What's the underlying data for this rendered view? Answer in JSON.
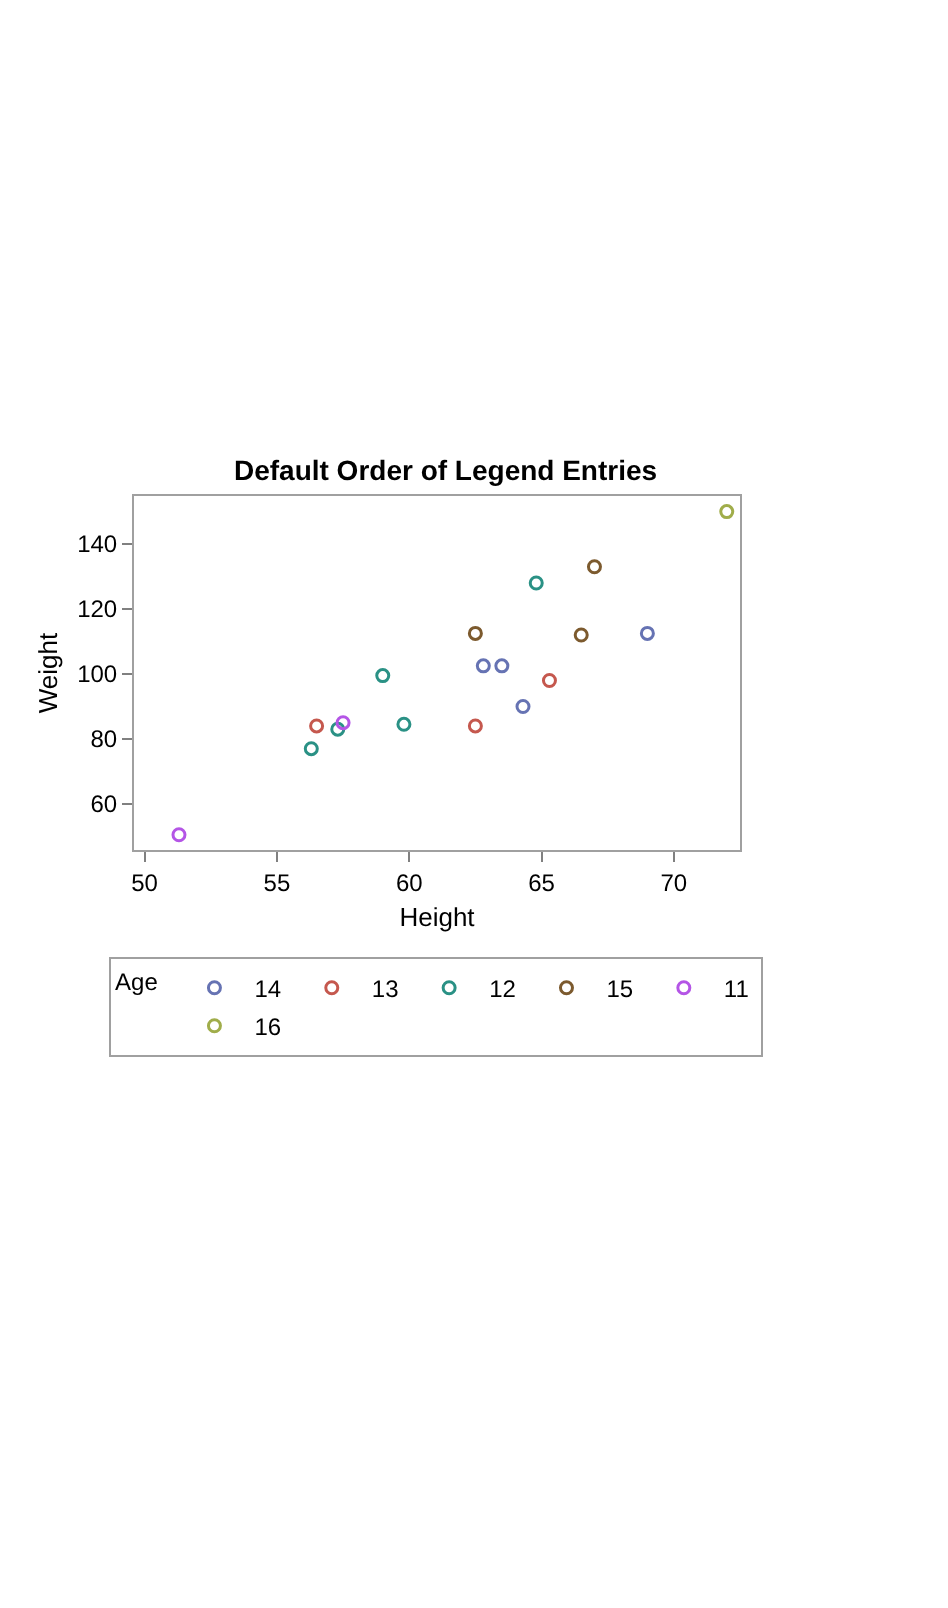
{
  "chart_data": {
    "type": "scatter",
    "title": "Default Order of Legend Entries",
    "xlabel": "Height",
    "ylabel": "Weight",
    "legend_title": "Age",
    "legend": "bottom",
    "marker": "circle",
    "xlim": [
      49.6,
      72.5
    ],
    "xticks": [
      50,
      55,
      60,
      65,
      70
    ],
    "ylim": [
      45.8,
      154.8
    ],
    "yticks": [
      60,
      80,
      100,
      120,
      140
    ],
    "series": [
      {
        "name": "14",
        "color": "#6673b3",
        "x": [
          69.0,
          62.8,
          63.5,
          64.3
        ],
        "values": [
          112.5,
          102.5,
          102.5,
          90.0
        ]
      },
      {
        "name": "13",
        "color": "#c5584e",
        "x": [
          56.5,
          65.3,
          62.5
        ],
        "values": [
          84.0,
          98.0,
          84.0
        ]
      },
      {
        "name": "12",
        "color": "#2a9185",
        "x": [
          57.3,
          59.8,
          59.0,
          56.3,
          64.8
        ],
        "values": [
          83.0,
          84.5,
          99.5,
          77.0,
          128.0
        ]
      },
      {
        "name": "15",
        "color": "#7c5a2e",
        "x": [
          62.5,
          66.5,
          67.0
        ],
        "values": [
          112.5,
          112.0,
          133.0
        ]
      },
      {
        "name": "11",
        "color": "#b455e6",
        "x": [
          51.3,
          57.5
        ],
        "values": [
          50.5,
          85.0
        ]
      },
      {
        "name": "16",
        "color": "#a0ad4a",
        "x": [
          72.0
        ],
        "values": [
          150.0
        ]
      }
    ]
  }
}
